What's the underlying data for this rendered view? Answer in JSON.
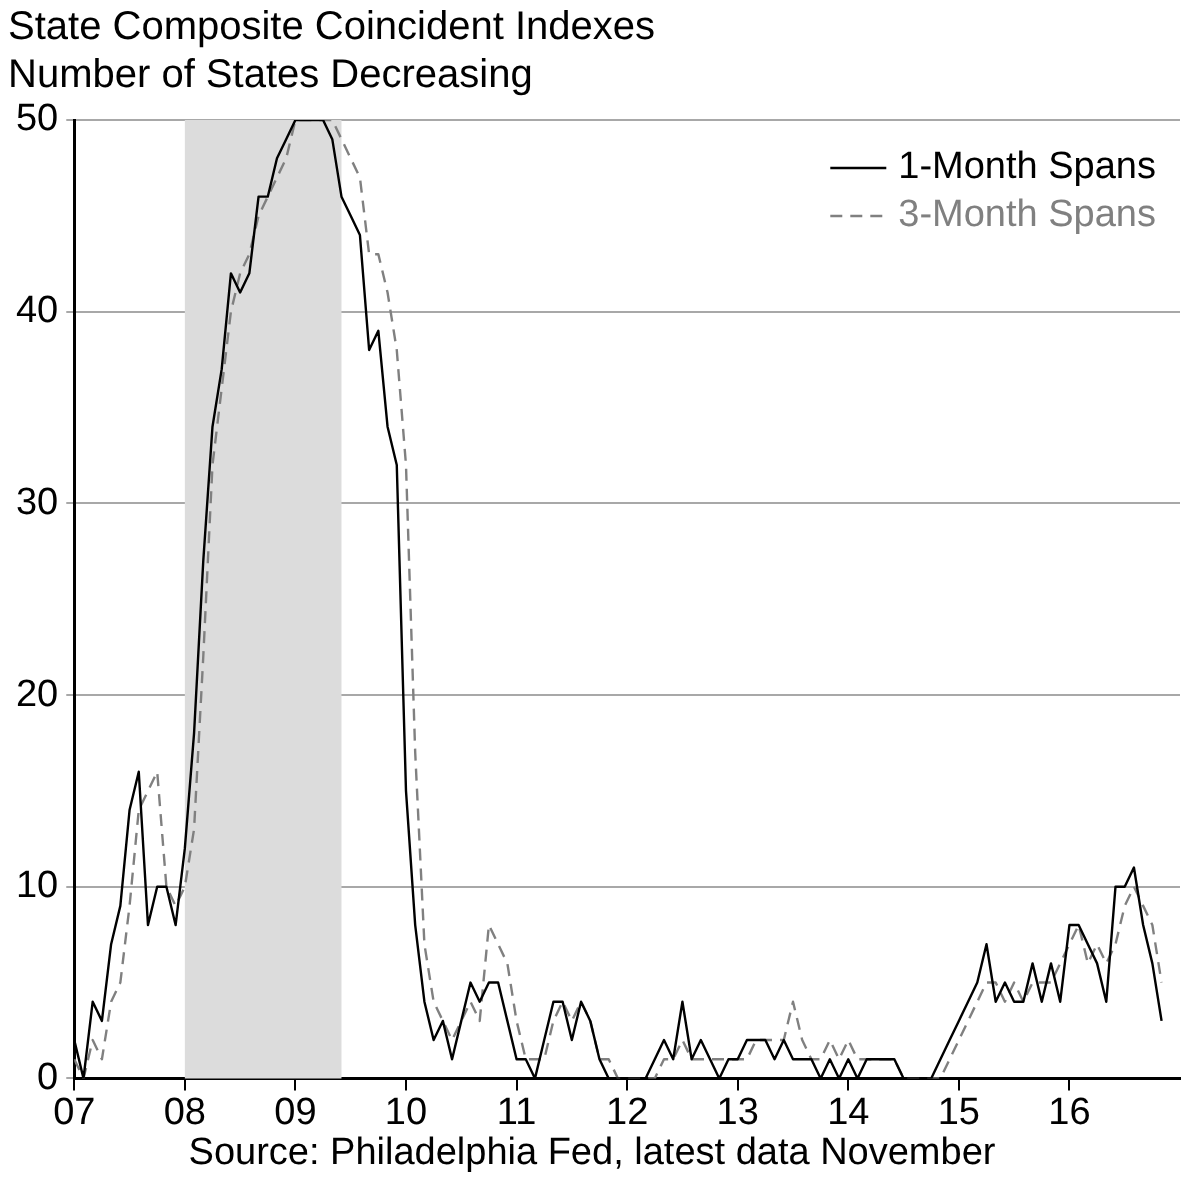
{
  "chart_data": {
    "type": "line",
    "title": "State Composite Coincident Indexes",
    "subtitle": "Number of States Decreasing",
    "annotations": [
      "Source: Philadelphia Fed, latest data November"
    ],
    "x": [
      "2007-01",
      "2007-02",
      "2007-03",
      "2007-04",
      "2007-05",
      "2007-06",
      "2007-07",
      "2007-08",
      "2007-09",
      "2007-10",
      "2007-11",
      "2007-12",
      "2008-01",
      "2008-02",
      "2008-03",
      "2008-04",
      "2008-05",
      "2008-06",
      "2008-07",
      "2008-08",
      "2008-09",
      "2008-10",
      "2008-11",
      "2008-12",
      "2009-01",
      "2009-02",
      "2009-03",
      "2009-04",
      "2009-05",
      "2009-06",
      "2009-07",
      "2009-08",
      "2009-09",
      "2009-10",
      "2009-11",
      "2009-12",
      "2010-01",
      "2010-02",
      "2010-03",
      "2010-04",
      "2010-05",
      "2010-06",
      "2010-07",
      "2010-08",
      "2010-09",
      "2010-10",
      "2010-11",
      "2010-12",
      "2011-01",
      "2011-02",
      "2011-03",
      "2011-04",
      "2011-05",
      "2011-06",
      "2011-07",
      "2011-08",
      "2011-09",
      "2011-10",
      "2011-11",
      "2011-12",
      "2012-01",
      "2012-02",
      "2012-03",
      "2012-04",
      "2012-05",
      "2012-06",
      "2012-07",
      "2012-08",
      "2012-09",
      "2012-10",
      "2012-11",
      "2012-12",
      "2013-01",
      "2013-02",
      "2013-03",
      "2013-04",
      "2013-05",
      "2013-06",
      "2013-07",
      "2013-08",
      "2013-09",
      "2013-10",
      "2013-11",
      "2013-12",
      "2014-01",
      "2014-02",
      "2014-03",
      "2014-04",
      "2014-05",
      "2014-06",
      "2014-07",
      "2014-08",
      "2014-09",
      "2014-10",
      "2014-11",
      "2014-12",
      "2015-01",
      "2015-02",
      "2015-03",
      "2015-04",
      "2015-05",
      "2015-06",
      "2015-07",
      "2015-08",
      "2015-09",
      "2015-10",
      "2015-11",
      "2015-12",
      "2016-01",
      "2016-02",
      "2016-03",
      "2016-04",
      "2016-05",
      "2016-06",
      "2016-07",
      "2016-08",
      "2016-09",
      "2016-10",
      "2016-11"
    ],
    "series": [
      {
        "name": "1-Month Spans",
        "color": "#000000",
        "line_style": "solid",
        "values": [
          2,
          0,
          4,
          3,
          7,
          9,
          14,
          16,
          8,
          10,
          10,
          8,
          12,
          18,
          27,
          34,
          37,
          42,
          41,
          42,
          46,
          46,
          48,
          49,
          50,
          50,
          50,
          50,
          49,
          46,
          45,
          44,
          38,
          39,
          34,
          32,
          15,
          8,
          4,
          2,
          3,
          1,
          3,
          5,
          4,
          5,
          5,
          3,
          1,
          1,
          0,
          2,
          4,
          4,
          2,
          4,
          3,
          1,
          0,
          0,
          0,
          0,
          0,
          1,
          2,
          1,
          4,
          1,
          2,
          1,
          0,
          1,
          1,
          2,
          2,
          2,
          1,
          2,
          1,
          1,
          1,
          0,
          1,
          0,
          1,
          0,
          1,
          1,
          1,
          1,
          0,
          0,
          0,
          0,
          1,
          2,
          3,
          4,
          5,
          7,
          4,
          5,
          4,
          4,
          6,
          4,
          6,
          4,
          8,
          8,
          7,
          6,
          4,
          10,
          10,
          11,
          8,
          6,
          3
        ]
      },
      {
        "name": "3-Month Spans",
        "color": "#808080",
        "line_style": "dashed",
        "values": [
          1,
          0,
          2,
          1,
          4,
          5,
          9,
          14,
          15,
          16,
          10,
          9,
          10,
          13,
          22,
          32,
          36,
          40,
          42,
          43,
          45,
          46,
          47,
          48,
          50,
          50,
          50,
          50,
          50,
          49,
          48,
          47,
          43,
          43,
          41,
          38,
          32,
          17,
          7,
          4,
          3,
          2,
          3,
          4,
          3,
          8,
          7,
          6,
          3,
          1,
          1,
          1,
          3,
          4,
          3,
          4,
          3,
          1,
          1,
          0,
          0,
          0,
          0,
          0,
          1,
          1,
          2,
          1,
          1,
          1,
          1,
          1,
          1,
          1,
          2,
          2,
          2,
          2,
          4,
          2,
          1,
          1,
          2,
          1,
          2,
          1,
          1,
          1,
          1,
          1,
          0,
          0,
          0,
          0,
          0,
          1,
          2,
          3,
          4,
          5,
          5,
          4,
          5,
          4,
          5,
          5,
          5,
          6,
          7,
          8,
          6,
          7,
          6,
          7,
          9,
          10,
          9,
          8,
          5
        ]
      }
    ],
    "xlim": [
      "2007-01",
      "2017-01"
    ],
    "xticks": [
      {
        "value": "2007-01",
        "label": "07"
      },
      {
        "value": "2008-01",
        "label": "08"
      },
      {
        "value": "2009-01",
        "label": "09"
      },
      {
        "value": "2010-01",
        "label": "10"
      },
      {
        "value": "2011-01",
        "label": "11"
      },
      {
        "value": "2012-01",
        "label": "12"
      },
      {
        "value": "2013-01",
        "label": "13"
      },
      {
        "value": "2014-01",
        "label": "14"
      },
      {
        "value": "2015-01",
        "label": "15"
      },
      {
        "value": "2016-01",
        "label": "16"
      }
    ],
    "ylim": [
      0,
      50
    ],
    "yticks": [
      0,
      10,
      20,
      30,
      40,
      50
    ],
    "bands": [
      {
        "axis": "x",
        "from": "2008-01",
        "to": "2009-06",
        "color": "#dcdcdc"
      }
    ],
    "grid": "y",
    "legend": "top right",
    "marker": "none"
  }
}
